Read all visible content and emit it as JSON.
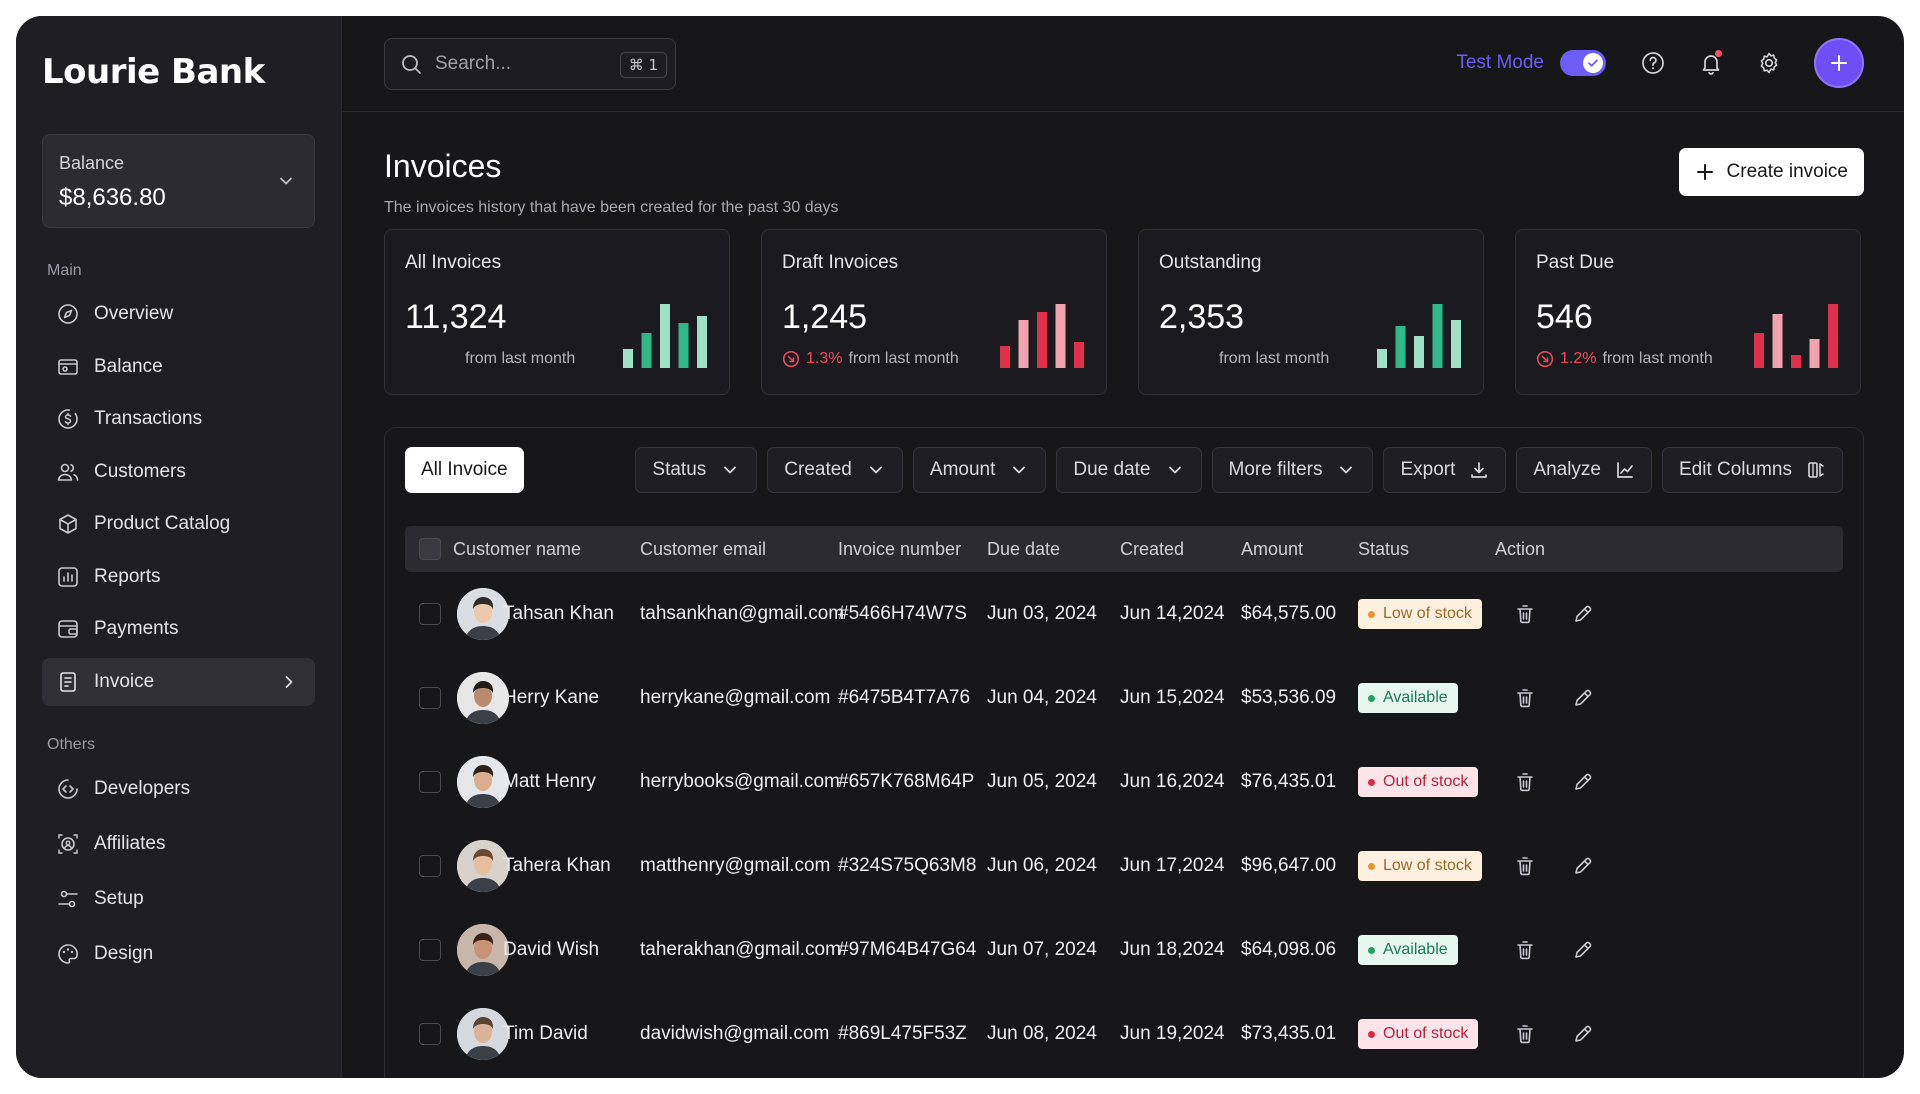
{
  "app": {
    "logo": "Lourie Bank"
  },
  "balance": {
    "label": "Balance",
    "value": "$8,636.80"
  },
  "sidebar": {
    "main_label": "Main",
    "main_items": [
      {
        "label": "Overview",
        "icon": "compass-icon"
      },
      {
        "label": "Balance",
        "icon": "wallet-icon"
      },
      {
        "label": "Transactions",
        "icon": "dollar-circle-icon"
      },
      {
        "label": "Customers",
        "icon": "users-icon"
      },
      {
        "label": "Product Catalog",
        "icon": "box-icon"
      },
      {
        "label": "Reports",
        "icon": "bar-chart-icon"
      },
      {
        "label": "Payments",
        "icon": "card-icon"
      },
      {
        "label": "Invoice",
        "icon": "document-icon",
        "active": true
      }
    ],
    "others_label": "Others",
    "other_items": [
      {
        "label": "Developers",
        "icon": "code-icon"
      },
      {
        "label": "Affiliates",
        "icon": "affiliate-icon"
      },
      {
        "label": "Setup",
        "icon": "sliders-icon"
      },
      {
        "label": "Design",
        "icon": "palette-icon"
      }
    ]
  },
  "topbar": {
    "search_placeholder": "Search...",
    "search_shortcut": "⌘ 1",
    "test_mode_label": "Test Mode",
    "test_mode_on": true
  },
  "header": {
    "title": "Invoices",
    "subtitle": "The invoices history that have been created for the past 30 days",
    "create_label": "Create invoice"
  },
  "stats": [
    {
      "title": "All Invoices",
      "value": "11,324",
      "change": "",
      "sub": "from last month",
      "trend": "up",
      "bars": [
        0.3,
        0.55,
        1.0,
        0.7,
        0.82
      ]
    },
    {
      "title": "Draft Invoices",
      "value": "1,245",
      "change": "1.3%",
      "sub": "from last month",
      "trend": "down",
      "bars": [
        0.35,
        0.75,
        0.88,
        1.0,
        0.4
      ]
    },
    {
      "title": "Outstanding",
      "value": "2,353",
      "change": "",
      "sub": "from last month",
      "trend": "up",
      "bars": [
        0.3,
        0.65,
        0.5,
        1.0,
        0.75
      ]
    },
    {
      "title": "Past Due",
      "value": "546",
      "change": "1.2%",
      "sub": "from last month",
      "trend": "down",
      "bars": [
        0.55,
        0.85,
        0.2,
        0.45,
        1.0
      ]
    }
  ],
  "colors": {
    "accent": "#6d5cf6",
    "up": "#2fb889",
    "up_light": "#9fe1c6",
    "down": "#e0304c",
    "down_light": "#f2a3b0"
  },
  "filters": {
    "tab_all": "All Invoice",
    "buttons": [
      {
        "label": "Status",
        "icon": "chevron-down-icon"
      },
      {
        "label": "Created",
        "icon": "chevron-down-icon"
      },
      {
        "label": "Amount",
        "icon": "chevron-down-icon"
      },
      {
        "label": "Due date",
        "icon": "chevron-down-icon"
      },
      {
        "label": "More filters",
        "icon": "chevron-down-icon"
      },
      {
        "label": "Export",
        "icon": "download-icon"
      },
      {
        "label": "Analyze",
        "icon": "line-chart-icon"
      },
      {
        "label": "Edit Columns",
        "icon": "columns-icon"
      }
    ]
  },
  "table": {
    "columns": [
      "Customer name",
      "Customer email",
      "Invoice number",
      "Due date",
      "Created",
      "Amount",
      "Status",
      "Action"
    ],
    "rows": [
      {
        "name": "Tahsan Khan",
        "email": "tahsankhan@gmail.com",
        "invoice": "#5466H74W7S",
        "due": "Jun 03, 2024",
        "created": "Jun 14,2024",
        "amount": "$64,575.00",
        "status": "Low of stock",
        "status_type": "low"
      },
      {
        "name": "Herry Kane",
        "email": "herrykane@gmail.com",
        "invoice": "#6475B4T7A76",
        "due": "Jun 04, 2024",
        "created": "Jun 15,2024",
        "amount": "$53,536.09",
        "status": "Available",
        "status_type": "avail"
      },
      {
        "name": "Matt Henry",
        "email": "herrybooks@gmail.com",
        "invoice": "#657K768M64P",
        "due": "Jun 05, 2024",
        "created": "Jun 16,2024",
        "amount": "$76,435.01",
        "status": "Out of stock",
        "status_type": "out"
      },
      {
        "name": "Tahera Khan",
        "email": "matthenry@gmail.com",
        "invoice": "#324S75Q63M8",
        "due": "Jun 06, 2024",
        "created": "Jun 17,2024",
        "amount": "$96,647.00",
        "status": "Low of stock",
        "status_type": "low"
      },
      {
        "name": "David Wish",
        "email": "taherakhan@gmail.com",
        "invoice": "#97M64B47G64",
        "due": "Jun 07, 2024",
        "created": "Jun 18,2024",
        "amount": "$64,098.06",
        "status": "Available",
        "status_type": "avail"
      },
      {
        "name": "Tim David",
        "email": "davidwish@gmail.com",
        "invoice": "#869L475F53Z",
        "due": "Jun 08, 2024",
        "created": "Jun 19,2024",
        "amount": "$73,435.01",
        "status": "Out of stock",
        "status_type": "out"
      }
    ]
  }
}
